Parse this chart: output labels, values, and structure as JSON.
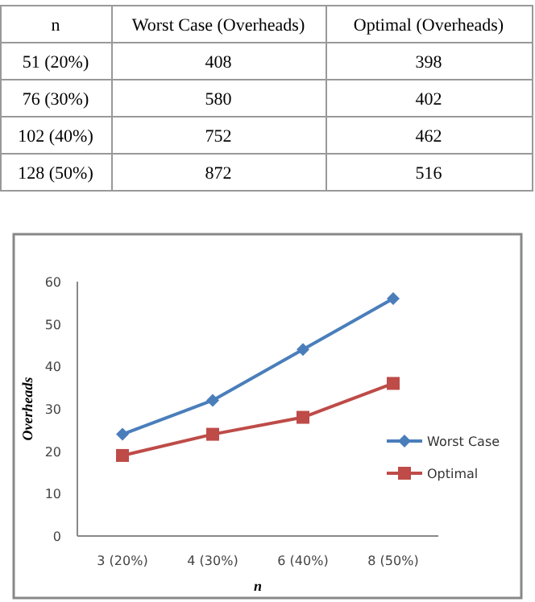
{
  "chart_data": [
    {
      "type": "other",
      "xlabel": "n",
      "data_labels": true,
      "categories": [
        "51 (20%)",
        "76 (30%)",
        "102 (40%)",
        "128 (50%)"
      ],
      "series": [
        {
          "name": "Worst Case (Overheads)",
          "values": [
            408,
            580,
            752,
            872
          ]
        },
        {
          "name": "Optimal (Overheads)",
          "values": [
            398,
            402,
            462,
            516
          ]
        }
      ]
    },
    {
      "type": "line",
      "xlabel": "n",
      "ylabel": "Overheads",
      "categories": [
        "3 (20%)",
        "4 (30%)",
        "6 (40%)",
        "8 (50%)"
      ],
      "ylim": [
        0,
        60
      ],
      "yticks": [
        0,
        10,
        20,
        30,
        40,
        50,
        60
      ],
      "legend": "right",
      "series": [
        {
          "name": "Worst Case",
          "color": "#4a7ebb",
          "marker": "diamond",
          "values": [
            24,
            32,
            44,
            56
          ]
        },
        {
          "name": "Optimal",
          "color": "#be4b48",
          "marker": "square",
          "values": [
            19,
            24,
            28,
            36
          ]
        }
      ]
    }
  ]
}
